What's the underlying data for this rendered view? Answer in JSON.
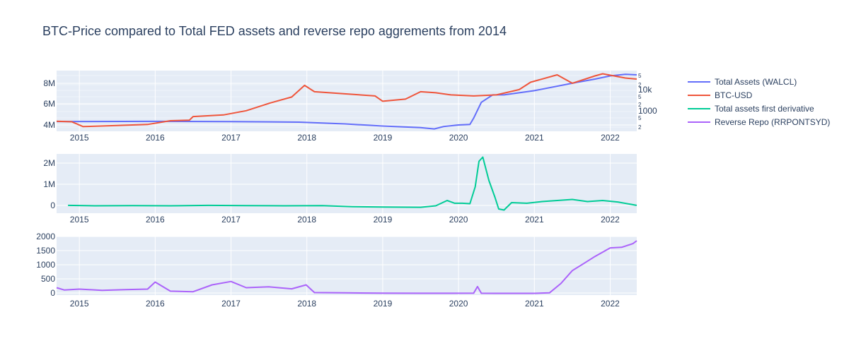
{
  "title": "BTC-Price compared to Total FED assets and reverse repo aggrements from 2014",
  "colors": {
    "bg": "#e5ecf6",
    "grid": "#ffffff",
    "text": "#2a3f5f"
  },
  "legend": [
    {
      "label": "Total Assets (WALCL)",
      "color": "#636efa"
    },
    {
      "label": "BTC-USD",
      "color": "#ef553b"
    },
    {
      "label": "Total assets first derivative",
      "color": "#00cc96"
    },
    {
      "label": "Reverse Repo (RRPONTSYD)",
      "color": "#ab63fa"
    }
  ],
  "chart_data": [
    {
      "type": "line",
      "name": "top-panel",
      "x_ticks": [
        "2015",
        "2016",
        "2017",
        "2018",
        "2019",
        "2020",
        "2021",
        "2022"
      ],
      "xlim": [
        2014.7,
        2022.35
      ],
      "y_ticks": [
        "4M",
        "6M",
        "8M"
      ],
      "ylim": [
        3.55,
        9.3
      ],
      "y_right_ticks": [
        "2",
        "5",
        "1000",
        "2",
        "5",
        "10k",
        "2",
        "5"
      ],
      "y_right_scale": "log",
      "series": [
        {
          "name": "Total Assets (WALCL)",
          "color": "#636efa",
          "x": [
            2014.7,
            2015.0,
            2016.0,
            2017.0,
            2017.9,
            2018.5,
            2019.0,
            2019.5,
            2019.68,
            2019.8,
            2020.0,
            2020.15,
            2020.2,
            2020.3,
            2020.45,
            2020.6,
            2021.0,
            2021.5,
            2021.8,
            2022.0,
            2022.2,
            2022.35
          ],
          "y": [
            4.48,
            4.48,
            4.49,
            4.47,
            4.42,
            4.25,
            4.05,
            3.9,
            3.78,
            4.0,
            4.15,
            4.2,
            4.8,
            6.3,
            7.0,
            7.0,
            7.4,
            8.1,
            8.5,
            8.8,
            8.95,
            8.9
          ]
        },
        {
          "name": "BTC-USD",
          "color": "#ef553b",
          "x": [
            2014.7,
            2014.9,
            2015.05,
            2015.5,
            2015.9,
            2016.2,
            2016.45,
            2016.5,
            2016.9,
            2017.2,
            2017.5,
            2017.8,
            2017.97,
            2018.1,
            2018.5,
            2018.9,
            2019.0,
            2019.3,
            2019.5,
            2019.7,
            2019.9,
            2020.2,
            2020.5,
            2020.8,
            2020.95,
            2021.3,
            2021.5,
            2021.8,
            2021.9,
            2022.2,
            2022.35
          ],
          "y": [
            4.5,
            4.45,
            4.0,
            4.1,
            4.2,
            4.55,
            4.6,
            4.95,
            5.1,
            5.5,
            6.2,
            6.8,
            7.9,
            7.3,
            7.1,
            6.9,
            6.4,
            6.6,
            7.3,
            7.2,
            7.0,
            6.9,
            7.0,
            7.5,
            8.2,
            8.9,
            8.1,
            8.8,
            9.0,
            8.6,
            8.5
          ]
        }
      ]
    },
    {
      "type": "line",
      "name": "middle-panel",
      "x_ticks": [
        "2015",
        "2016",
        "2017",
        "2018",
        "2019",
        "2020",
        "2021",
        "2022"
      ],
      "xlim": [
        2014.7,
        2022.35
      ],
      "y_ticks": [
        "0",
        "1M",
        "2M"
      ],
      "ylim": [
        -0.35,
        2.45
      ],
      "series": [
        {
          "name": "Total assets first derivative",
          "color": "#00cc96",
          "x": [
            2014.85,
            2015.2,
            2015.7,
            2016.2,
            2016.7,
            2017.2,
            2017.7,
            2018.2,
            2018.6,
            2019.0,
            2019.5,
            2019.7,
            2019.85,
            2019.95,
            2020.05,
            2020.15,
            2020.22,
            2020.27,
            2020.32,
            2020.4,
            2020.48,
            2020.53,
            2020.6,
            2020.7,
            2020.9,
            2021.1,
            2021.3,
            2021.5,
            2021.7,
            2021.9,
            2022.1,
            2022.35
          ],
          "y": [
            0.02,
            0.0,
            0.01,
            0.0,
            0.02,
            0.01,
            0.0,
            0.01,
            -0.04,
            -0.06,
            -0.07,
            0.0,
            0.25,
            0.12,
            0.12,
            0.1,
            0.9,
            2.1,
            2.3,
            1.2,
            0.4,
            -0.15,
            -0.2,
            0.15,
            0.12,
            0.2,
            0.25,
            0.3,
            0.2,
            0.25,
            0.18,
            0.02
          ]
        }
      ]
    },
    {
      "type": "line",
      "name": "bottom-panel",
      "x_ticks": [
        "2015",
        "2016",
        "2017",
        "2018",
        "2019",
        "2020",
        "2021",
        "2022"
      ],
      "xlim": [
        2014.7,
        2022.35
      ],
      "y_ticks": [
        "0",
        "500",
        "1000",
        "1500",
        "2000"
      ],
      "ylim": [
        -60,
        2000
      ],
      "series": [
        {
          "name": "Reverse Repo (RRPONTSYD)",
          "color": "#ab63fa",
          "x": [
            2014.7,
            2014.8,
            2015.0,
            2015.3,
            2015.6,
            2015.9,
            2016.0,
            2016.2,
            2016.5,
            2016.75,
            2017.0,
            2017.2,
            2017.5,
            2017.8,
            2017.99,
            2018.1,
            2018.5,
            2019.0,
            2019.5,
            2019.9,
            2020.2,
            2020.25,
            2020.3,
            2020.5,
            2021.0,
            2021.2,
            2021.35,
            2021.5,
            2021.65,
            2021.8,
            2022.0,
            2022.15,
            2022.3,
            2022.35
          ],
          "y": [
            200,
            120,
            150,
            110,
            130,
            150,
            400,
            80,
            60,
            300,
            420,
            200,
            230,
            160,
            300,
            30,
            20,
            10,
            5,
            5,
            10,
            240,
            5,
            2,
            2,
            20,
            350,
            800,
            1050,
            1300,
            1600,
            1620,
            1750,
            1850
          ]
        }
      ]
    }
  ]
}
